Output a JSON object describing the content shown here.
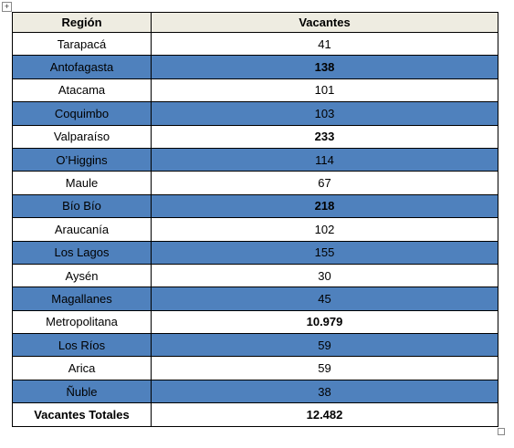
{
  "table": {
    "header": [
      "Región",
      "Vacantes"
    ],
    "rows": [
      [
        "Tarapacá",
        "41"
      ],
      [
        "Antofagasta",
        "138"
      ],
      [
        "Atacama",
        "101"
      ],
      [
        "Coquimbo",
        "103"
      ],
      [
        "Valparaíso",
        "233"
      ],
      [
        "O’Higgins",
        "114"
      ],
      [
        "Maule",
        "67"
      ],
      [
        "Bío Bío",
        "218"
      ],
      [
        "Araucanía",
        "102"
      ],
      [
        "Los Lagos",
        "155"
      ],
      [
        "Aysén",
        "30"
      ],
      [
        "Magallanes",
        "45"
      ],
      [
        "Metropolitana",
        "10.979"
      ],
      [
        "Los Ríos",
        "59"
      ],
      [
        "Arica",
        "59"
      ],
      [
        "Ñuble",
        "38"
      ],
      [
        "Vacantes Totales",
        "12.482"
      ]
    ]
  }
}
